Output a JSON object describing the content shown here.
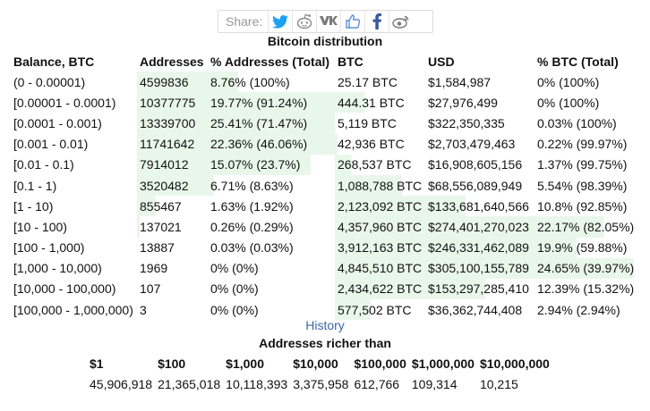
{
  "share": {
    "label": "Share:",
    "icons": [
      "twitter-icon",
      "reddit-icon",
      "vk-icon",
      "like-icon",
      "facebook-icon",
      "weibo-icon"
    ]
  },
  "title": "Bitcoin distribution",
  "columns": [
    "Balance, BTC",
    "Addresses",
    "% Addresses (Total)",
    "BTC",
    "USD",
    "% BTC (Total)"
  ],
  "rows": [
    {
      "balance": "(0 - 0.00001)",
      "addresses": "4599836",
      "pct_addr": "8.76% (100%)",
      "btc": "25.17 BTC",
      "usd": "$1,584,987",
      "pct_btc": "0% (100%)",
      "addr_share": 0.0876,
      "btc_share": 0.0
    },
    {
      "balance": "[0.00001 - 0.0001)",
      "addresses": "10377775",
      "pct_addr": "19.77% (91.24%)",
      "btc": "444.31 BTC",
      "usd": "$27,976,499",
      "pct_btc": "0% (100%)",
      "addr_share": 0.1977,
      "btc_share": 0.0
    },
    {
      "balance": "[0.0001 - 0.001)",
      "addresses": "13339700",
      "pct_addr": "25.41% (71.47%)",
      "btc": "5,119 BTC",
      "usd": "$322,350,335",
      "pct_btc": "0.03% (100%)",
      "addr_share": 0.2541,
      "btc_share": 0.0003
    },
    {
      "balance": "[0.001 - 0.01)",
      "addresses": "11741642",
      "pct_addr": "22.36% (46.06%)",
      "btc": "42,936 BTC",
      "usd": "$2,703,479,463",
      "pct_btc": "0.22% (99.97%)",
      "addr_share": 0.2236,
      "btc_share": 0.0022
    },
    {
      "balance": "[0.01 - 0.1)",
      "addresses": "7914012",
      "pct_addr": "15.07% (23.7%)",
      "btc": "268,537 BTC",
      "usd": "$16,908,605,156",
      "pct_btc": "1.37% (99.75%)",
      "addr_share": 0.1507,
      "btc_share": 0.0137
    },
    {
      "balance": "[0.1 - 1)",
      "addresses": "3520482",
      "pct_addr": "6.71% (8.63%)",
      "btc": "1,088,788 BTC",
      "usd": "$68,556,089,949",
      "pct_btc": "5.54% (98.39%)",
      "addr_share": 0.0671,
      "btc_share": 0.0554
    },
    {
      "balance": "[1 - 10)",
      "addresses": "855467",
      "pct_addr": "1.63% (1.92%)",
      "btc": "2,123,092 BTC",
      "usd": "$133,681,640,566",
      "pct_btc": "10.8% (92.85%)",
      "addr_share": 0.0163,
      "btc_share": 0.108
    },
    {
      "balance": "[10 - 100)",
      "addresses": "137021",
      "pct_addr": "0.26% (0.29%)",
      "btc": "4,357,960 BTC",
      "usd": "$274,401,270,023",
      "pct_btc": "22.17% (82.05%)",
      "addr_share": 0.0026,
      "btc_share": 0.2217
    },
    {
      "balance": "[100 - 1,000)",
      "addresses": "13887",
      "pct_addr": "0.03% (0.03%)",
      "btc": "3,912,163 BTC",
      "usd": "$246,331,462,089",
      "pct_btc": "19.9% (59.88%)",
      "addr_share": 0.0003,
      "btc_share": 0.199
    },
    {
      "balance": "[1,000 - 10,000)",
      "addresses": "1969",
      "pct_addr": "0% (0%)",
      "btc": "4,845,510 BTC",
      "usd": "$305,100,155,789",
      "pct_btc": "24.65% (39.97%)",
      "addr_share": 0.0,
      "btc_share": 0.2465
    },
    {
      "balance": "[10,000 - 100,000)",
      "addresses": "107",
      "pct_addr": "0% (0%)",
      "btc": "2,434,622 BTC",
      "usd": "$153,297,285,410",
      "pct_btc": "12.39% (15.32%)",
      "addr_share": 0.0,
      "btc_share": 0.1239
    },
    {
      "balance": "[100,000 - 1,000,000)",
      "addresses": "3",
      "pct_addr": "0% (0%)",
      "btc": "577,502 BTC",
      "usd": "$36,362,744,408",
      "pct_btc": "2.94% (2.94%)",
      "addr_share": 0.0,
      "btc_share": 0.0294
    }
  ],
  "history_link": "History",
  "richer": {
    "title": "Addresses richer than",
    "headers": [
      "$1",
      "$100",
      "$1,000",
      "$10,000",
      "$100,000",
      "$1,000,000",
      "$10,000,000"
    ],
    "values": [
      "45,906,918",
      "21,365,018",
      "10,118,393",
      "3,375,958",
      "612,766",
      "109,314",
      "10,215"
    ]
  },
  "colors": {
    "bar": "#e9f7ea",
    "link": "#3a66a7"
  }
}
